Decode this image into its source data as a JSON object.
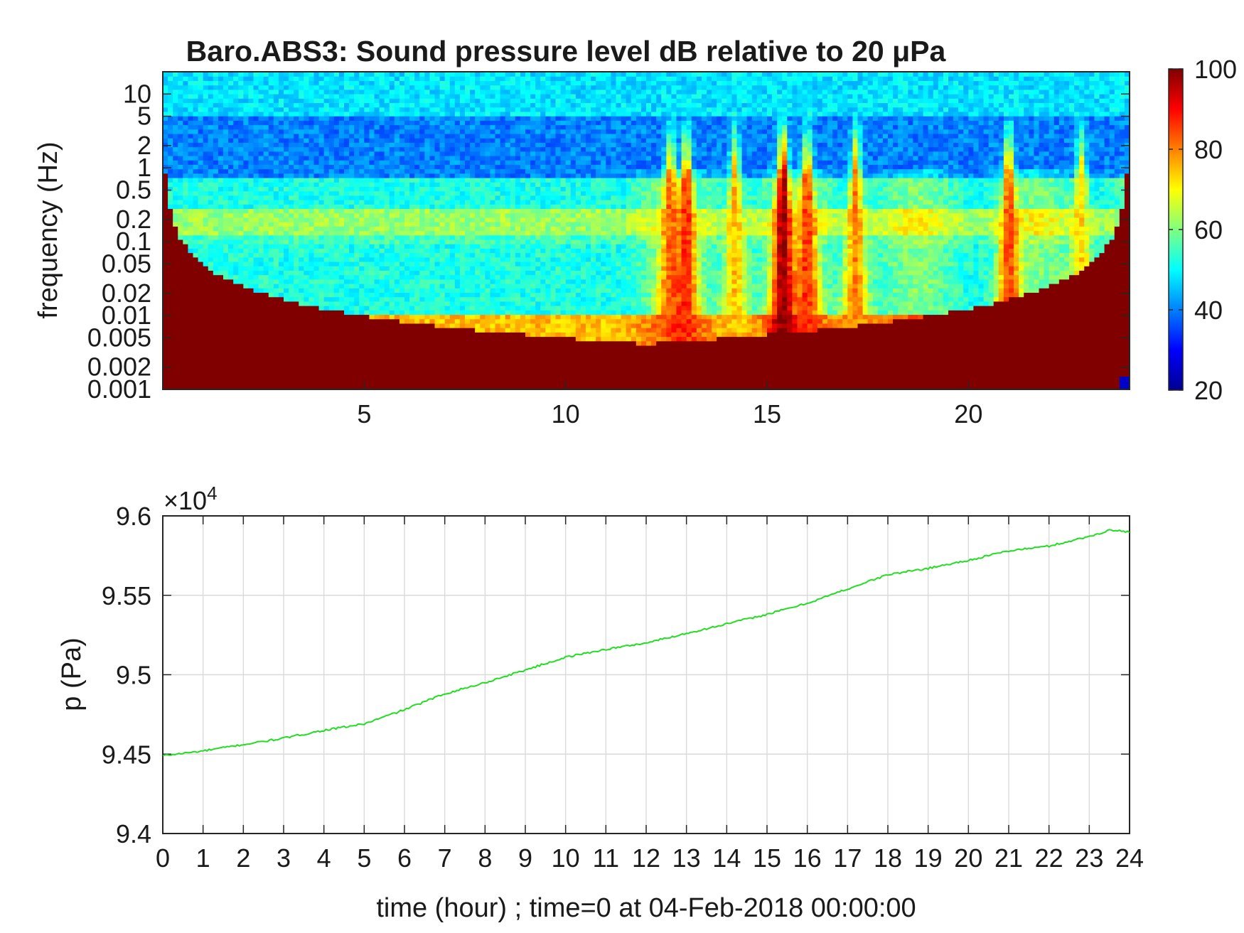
{
  "colors": {
    "jet": [
      "#00008f",
      "#0000ff",
      "#0080ff",
      "#00ffff",
      "#80ff80",
      "#ffff00",
      "#ff8000",
      "#ff0000",
      "#800000"
    ],
    "pressure_line": "#22dd22"
  },
  "chart_data": [
    {
      "type": "heatmap",
      "title": "Baro.ABS3: Sound pressure level dB relative to 20 μPa",
      "ylabel": "frequency (Hz)",
      "xlabel": "",
      "x_ticks": [
        5,
        10,
        15,
        20
      ],
      "y_scale": "log",
      "y_ticks": [
        0.001,
        0.002,
        0.005,
        0.01,
        0.02,
        0.05,
        0.1,
        0.2,
        0.5,
        1,
        2,
        5,
        10
      ],
      "y_tick_labels": [
        "0.001",
        "0.002",
        "0.005",
        "0.01",
        "0.02",
        "0.05",
        "0.1",
        "0.2",
        "0.5",
        "1",
        "2",
        "5",
        "10"
      ],
      "xlim": [
        0,
        24
      ],
      "ylim": [
        0.001,
        20
      ],
      "colorbar": {
        "range": [
          20,
          100
        ],
        "ticks": [
          20,
          40,
          60,
          80,
          100
        ],
        "colormap": "jet"
      },
      "bands_db": [
        {
          "f_range": [
            5,
            20
          ],
          "level": 48
        },
        {
          "f_range": [
            0.7,
            5
          ],
          "level": 40
        },
        {
          "f_range": [
            0.3,
            0.7
          ],
          "level": 52
        },
        {
          "f_range": [
            0.12,
            0.3
          ],
          "level": 62
        },
        {
          "f_range": [
            0.1,
            0.12
          ],
          "level": 55
        },
        {
          "f_range": [
            0.01,
            0.1
          ],
          "level": 52
        },
        {
          "f_range": [
            0.003,
            0.01
          ],
          "level": 75
        },
        {
          "f_range": [
            0.001,
            0.003
          ],
          "level": 86
        }
      ],
      "events_db": [
        {
          "t": 12.6,
          "peak": 75
        },
        {
          "t": 13.0,
          "peak": 80
        },
        {
          "t": 14.2,
          "peak": 75
        },
        {
          "t": 15.4,
          "peak": 92
        },
        {
          "t": 16.0,
          "peak": 80
        },
        {
          "t": 17.2,
          "peak": 80
        },
        {
          "t": 21.0,
          "peak": 80
        },
        {
          "t": 22.8,
          "peak": 72
        }
      ]
    },
    {
      "type": "line",
      "title": "",
      "xlabel": "time (hour) ; time=0 at 04-Feb-2018 00:00:00",
      "ylabel": "p (Pa)",
      "y_exponent_label": "×10",
      "y_exponent_power": "4",
      "x_ticks": [
        0,
        1,
        2,
        3,
        4,
        5,
        6,
        7,
        8,
        9,
        10,
        11,
        12,
        13,
        14,
        15,
        16,
        17,
        18,
        19,
        20,
        21,
        22,
        23,
        24
      ],
      "y_ticks": [
        9.4,
        9.45,
        9.5,
        9.55,
        9.6
      ],
      "y_tick_labels": [
        "9.4",
        "9.45",
        "9.5",
        "9.55",
        "9.6"
      ],
      "xlim": [
        0,
        24
      ],
      "ylim": [
        9.4,
        9.6
      ],
      "grid": true,
      "series": [
        {
          "x": [
            0,
            1,
            2,
            3,
            4,
            5,
            6,
            7,
            8,
            9,
            10,
            11,
            12,
            13,
            14,
            15,
            16,
            17,
            18,
            19,
            20,
            21,
            22,
            23,
            23.5,
            24
          ],
          "y": [
            9.449,
            9.452,
            9.456,
            9.46,
            9.465,
            9.469,
            9.478,
            9.488,
            9.495,
            9.503,
            9.511,
            9.516,
            9.52,
            9.526,
            9.532,
            9.538,
            9.545,
            9.554,
            9.563,
            9.567,
            9.572,
            9.578,
            9.581,
            9.587,
            9.591,
            9.59
          ]
        }
      ]
    }
  ]
}
